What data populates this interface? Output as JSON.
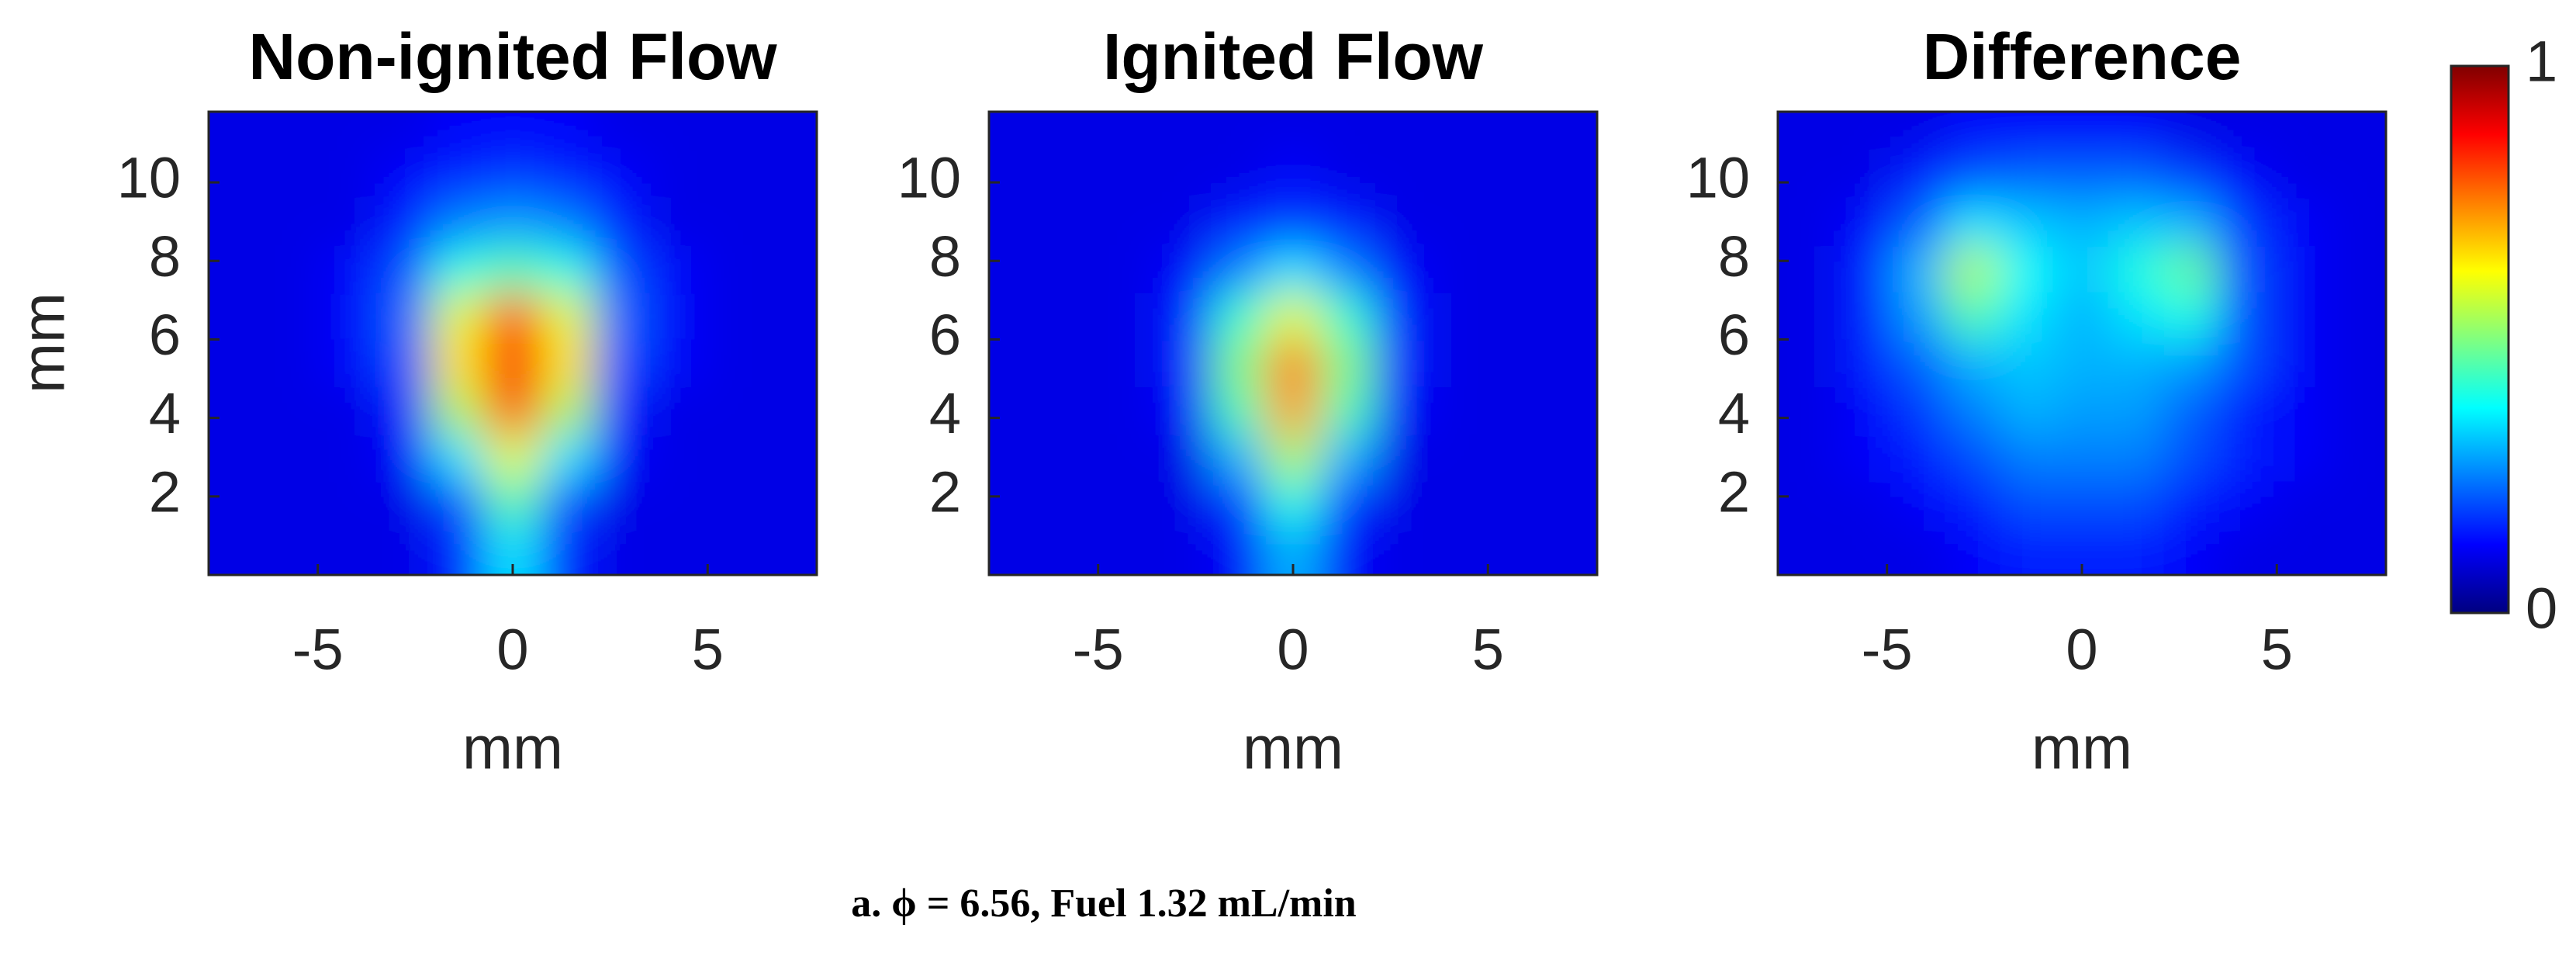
{
  "chart_data": [
    {
      "type": "heatmap",
      "title": "Non-ignited Flow",
      "xlabel": "mm",
      "ylabel": "mm",
      "xlim": [
        -7.8,
        7.8
      ],
      "ylim": [
        0,
        11.8
      ],
      "xticks": [
        -5,
        0,
        5
      ],
      "yticks": [
        2,
        4,
        6,
        8,
        10
      ],
      "x": [
        -7,
        -5.6,
        -4.2,
        -2.8,
        -1.4,
        0,
        1.4,
        2.8,
        4.2,
        5.6,
        7
      ],
      "y": [
        0.6,
        1.8,
        3.0,
        4.2,
        5.4,
        6.6,
        7.8,
        9.0,
        10.2,
        11.4
      ],
      "z": [
        [
          0.1,
          0.1,
          0.1,
          0.1,
          0.15,
          0.35,
          0.15,
          0.1,
          0.1,
          0.1,
          0.1
        ],
        [
          0.1,
          0.1,
          0.1,
          0.1,
          0.2,
          0.45,
          0.2,
          0.1,
          0.1,
          0.1,
          0.1
        ],
        [
          0.1,
          0.1,
          0.1,
          0.12,
          0.35,
          0.6,
          0.35,
          0.12,
          0.1,
          0.1,
          0.1
        ],
        [
          0.1,
          0.1,
          0.1,
          0.15,
          0.55,
          0.8,
          0.55,
          0.15,
          0.1,
          0.1,
          0.1
        ],
        [
          0.1,
          0.1,
          0.12,
          0.2,
          0.65,
          0.88,
          0.65,
          0.2,
          0.12,
          0.1,
          0.1
        ],
        [
          0.1,
          0.1,
          0.12,
          0.22,
          0.6,
          0.8,
          0.6,
          0.22,
          0.12,
          0.1,
          0.1
        ],
        [
          0.1,
          0.1,
          0.12,
          0.2,
          0.4,
          0.45,
          0.4,
          0.2,
          0.12,
          0.1,
          0.1
        ],
        [
          0.1,
          0.1,
          0.1,
          0.15,
          0.25,
          0.28,
          0.25,
          0.15,
          0.1,
          0.1,
          0.1
        ],
        [
          0.1,
          0.1,
          0.1,
          0.12,
          0.16,
          0.18,
          0.16,
          0.12,
          0.1,
          0.1,
          0.1
        ],
        [
          0.1,
          0.1,
          0.1,
          0.1,
          0.12,
          0.12,
          0.12,
          0.1,
          0.1,
          0.1,
          0.1
        ]
      ]
    },
    {
      "type": "heatmap",
      "title": "Ignited Flow",
      "xlabel": "mm",
      "xlim": [
        -7.8,
        7.8
      ],
      "ylim": [
        0,
        11.8
      ],
      "xticks": [
        -5,
        0,
        5
      ],
      "yticks": [
        2,
        4,
        6,
        8,
        10
      ],
      "x": [
        -7,
        -5.6,
        -4.2,
        -2.8,
        -1.4,
        0,
        1.4,
        2.8,
        4.2,
        5.6,
        7
      ],
      "y": [
        0.6,
        1.8,
        3.0,
        4.2,
        5.4,
        6.6,
        7.8,
        9.0,
        10.2,
        11.4
      ],
      "z": [
        [
          0.1,
          0.1,
          0.1,
          0.1,
          0.12,
          0.3,
          0.12,
          0.1,
          0.1,
          0.1,
          0.1
        ],
        [
          0.1,
          0.1,
          0.1,
          0.1,
          0.18,
          0.4,
          0.18,
          0.1,
          0.1,
          0.1,
          0.1
        ],
        [
          0.1,
          0.1,
          0.1,
          0.1,
          0.3,
          0.55,
          0.3,
          0.1,
          0.1,
          0.1,
          0.1
        ],
        [
          0.1,
          0.1,
          0.1,
          0.12,
          0.45,
          0.72,
          0.45,
          0.12,
          0.1,
          0.1,
          0.1
        ],
        [
          0.1,
          0.1,
          0.1,
          0.15,
          0.5,
          0.75,
          0.5,
          0.15,
          0.1,
          0.1,
          0.1
        ],
        [
          0.1,
          0.1,
          0.1,
          0.15,
          0.42,
          0.6,
          0.42,
          0.15,
          0.1,
          0.1,
          0.1
        ],
        [
          0.1,
          0.1,
          0.1,
          0.12,
          0.25,
          0.35,
          0.25,
          0.12,
          0.1,
          0.1,
          0.1
        ],
        [
          0.1,
          0.1,
          0.1,
          0.1,
          0.15,
          0.18,
          0.15,
          0.1,
          0.1,
          0.1,
          0.1
        ],
        [
          0.1,
          0.1,
          0.1,
          0.1,
          0.1,
          0.12,
          0.1,
          0.1,
          0.1,
          0.1,
          0.1
        ],
        [
          0.1,
          0.1,
          0.1,
          0.1,
          0.1,
          0.1,
          0.1,
          0.1,
          0.1,
          0.1,
          0.1
        ]
      ]
    },
    {
      "type": "heatmap",
      "title": "Difference",
      "xlabel": "mm",
      "xlim": [
        -7.8,
        7.8
      ],
      "ylim": [
        0,
        11.8
      ],
      "xticks": [
        -5,
        0,
        5
      ],
      "yticks": [
        2,
        4,
        6,
        8,
        10
      ],
      "x": [
        -7,
        -5.6,
        -4.2,
        -2.8,
        -1.4,
        0,
        1.4,
        2.8,
        4.2,
        5.6,
        7
      ],
      "y": [
        0.6,
        1.8,
        3.0,
        4.2,
        5.4,
        6.6,
        7.8,
        9.0,
        10.2,
        11.4
      ],
      "z": [
        [
          0.1,
          0.1,
          0.1,
          0.12,
          0.15,
          0.15,
          0.15,
          0.12,
          0.1,
          0.1,
          0.1
        ],
        [
          0.1,
          0.1,
          0.12,
          0.15,
          0.2,
          0.2,
          0.2,
          0.15,
          0.12,
          0.1,
          0.1
        ],
        [
          0.1,
          0.12,
          0.15,
          0.2,
          0.25,
          0.25,
          0.25,
          0.2,
          0.15,
          0.12,
          0.1
        ],
        [
          0.1,
          0.12,
          0.18,
          0.25,
          0.3,
          0.28,
          0.28,
          0.22,
          0.15,
          0.12,
          0.1
        ],
        [
          0.1,
          0.15,
          0.22,
          0.3,
          0.32,
          0.3,
          0.3,
          0.28,
          0.2,
          0.12,
          0.1
        ],
        [
          0.1,
          0.15,
          0.28,
          0.45,
          0.35,
          0.3,
          0.35,
          0.4,
          0.2,
          0.12,
          0.1
        ],
        [
          0.1,
          0.15,
          0.3,
          0.55,
          0.38,
          0.32,
          0.4,
          0.48,
          0.2,
          0.12,
          0.1
        ],
        [
          0.1,
          0.12,
          0.22,
          0.35,
          0.32,
          0.3,
          0.32,
          0.3,
          0.18,
          0.12,
          0.1
        ],
        [
          0.1,
          0.1,
          0.15,
          0.2,
          0.22,
          0.22,
          0.22,
          0.18,
          0.12,
          0.1,
          0.1
        ],
        [
          0.1,
          0.1,
          0.1,
          0.12,
          0.12,
          0.12,
          0.12,
          0.1,
          0.1,
          0.1,
          0.1
        ]
      ]
    }
  ],
  "colorbar": {
    "clim": [
      0,
      1
    ],
    "ticks": [
      0,
      1
    ],
    "colormap": "jet"
  },
  "caption": "a. ϕ = 6.56, Fuel 1.32 mL/min"
}
